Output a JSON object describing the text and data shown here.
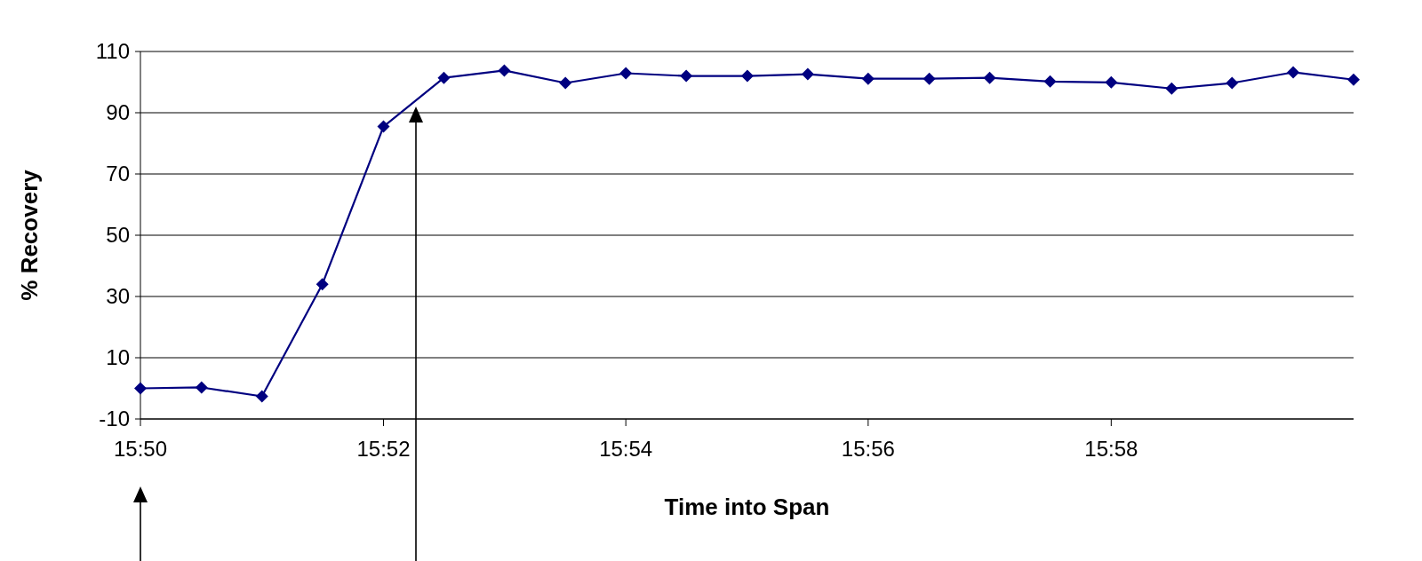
{
  "chart_data": {
    "type": "line",
    "xlabel": "Time into Span",
    "ylabel": "% Recovery",
    "x": [
      15.8333,
      15.8417,
      15.85,
      15.8583,
      15.8667,
      15.875,
      15.8833,
      15.8917,
      15.9,
      15.9083,
      15.9167,
      15.925,
      15.9333,
      15.9417,
      15.95,
      15.9583,
      15.9667,
      15.975,
      15.9833,
      15.9917,
      16.0
    ],
    "series": [
      {
        "color": "#000080",
        "values": [
          0.0,
          0.3,
          -2.6,
          34,
          85.5,
          101.4,
          103.8,
          99.7,
          102.9,
          102,
          102,
          102.6,
          101.1,
          101.1,
          101.4,
          100.2,
          99.9,
          97.9,
          99.7,
          103.2,
          100.8
        ]
      }
    ],
    "xlim": [
      15.8333,
      16.0
    ],
    "xticks": [
      {
        "value": 15.8333,
        "label": "15:50"
      },
      {
        "value": 15.8667,
        "label": "15:52"
      },
      {
        "value": 15.9,
        "label": "15:54"
      },
      {
        "value": 15.9333,
        "label": "15:56"
      },
      {
        "value": 15.9667,
        "label": "15:58"
      }
    ],
    "ylim": [
      -10,
      110
    ],
    "yticks": [
      -10,
      10,
      30,
      50,
      70,
      90,
      110
    ],
    "grid": "y",
    "marker": "diamond",
    "line_style": "solid"
  }
}
